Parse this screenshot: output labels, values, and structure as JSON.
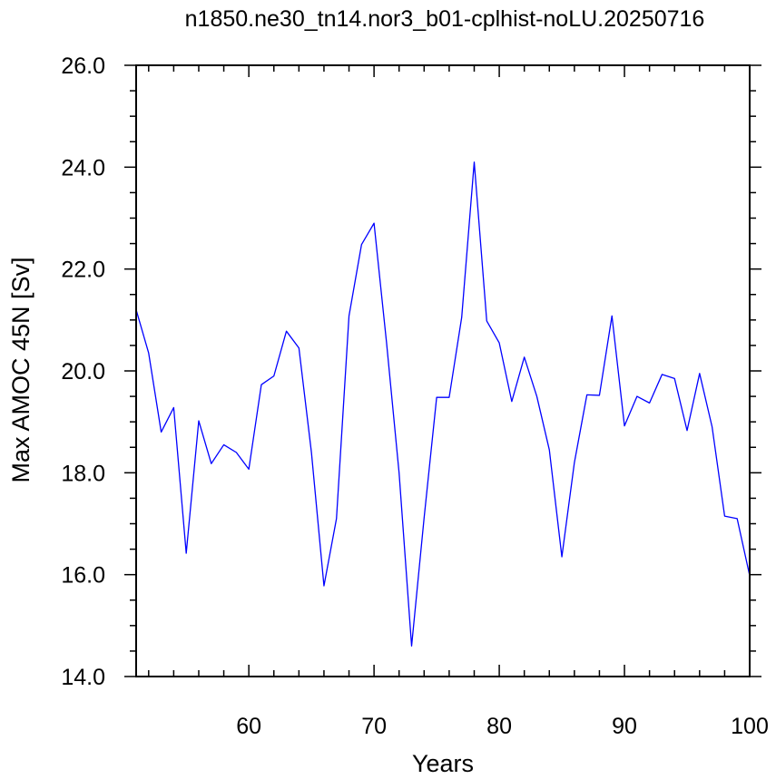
{
  "chart_data": {
    "type": "line",
    "title": "n1850.ne30_tn14.nor3_b01-cplhist-noLU.20250716",
    "xlabel": "Years",
    "ylabel": "Max AMOC 45N [Sv]",
    "xlim": [
      51,
      100
    ],
    "ylim": [
      14.0,
      26.0
    ],
    "x_ticks": [
      60,
      70,
      80,
      90,
      100
    ],
    "x_tick_labels": [
      "60",
      "70",
      "80",
      "90",
      "100"
    ],
    "y_ticks": [
      14.0,
      16.0,
      18.0,
      20.0,
      22.0,
      24.0,
      26.0
    ],
    "y_tick_labels": [
      "14.0",
      "16.0",
      "18.0",
      "20.0",
      "22.0",
      "24.0",
      "26.0"
    ],
    "grid": false,
    "line_color": "#0000ff",
    "series": [
      {
        "x": [
          51,
          52,
          53,
          54,
          55,
          56,
          57,
          58,
          59,
          60,
          61,
          62,
          63,
          64,
          65,
          66,
          67,
          68,
          69,
          70,
          71,
          72,
          73,
          74,
          75,
          76,
          77,
          78,
          79,
          80,
          81,
          82,
          83,
          84,
          85,
          86,
          87,
          88,
          89,
          90,
          91,
          92,
          93,
          94,
          95,
          96,
          97,
          98,
          99,
          100
        ],
        "values": [
          21.2,
          20.35,
          18.8,
          19.28,
          16.42,
          19.02,
          18.18,
          18.55,
          18.4,
          18.07,
          19.73,
          19.9,
          20.78,
          20.45,
          18.4,
          15.78,
          17.1,
          21.08,
          22.48,
          22.9,
          20.55,
          18.0,
          14.6,
          17.12,
          19.48,
          19.48,
          21.05,
          24.1,
          20.98,
          20.55,
          19.4,
          20.27,
          19.5,
          18.45,
          16.35,
          18.2,
          19.53,
          19.52,
          21.08,
          18.92,
          19.5,
          19.37,
          19.93,
          19.85,
          18.83,
          19.95,
          18.9,
          17.15,
          17.1,
          15.98
        ]
      }
    ]
  }
}
